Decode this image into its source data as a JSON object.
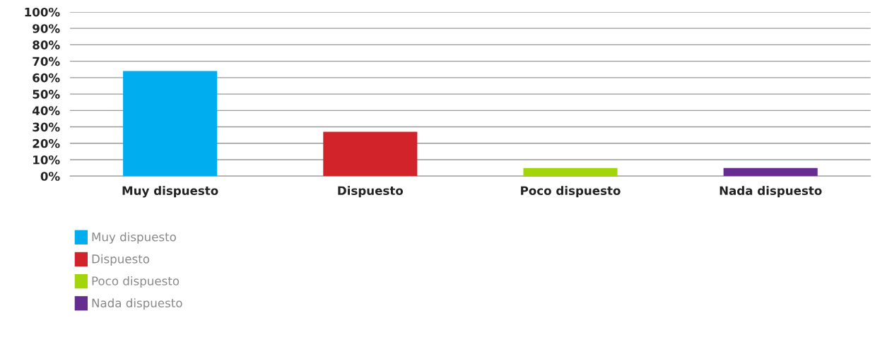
{
  "chart_data": {
    "type": "bar",
    "categories": [
      "Muy dispuesto",
      "Dispuesto",
      "Poco dispuesto",
      "Nada dispuesto"
    ],
    "series": [
      {
        "name": "Muy dispuesto",
        "color": "#00adee",
        "values": [
          64,
          null,
          null,
          null
        ]
      },
      {
        "name": "Dispuesto",
        "color": "#d2232a",
        "values": [
          null,
          27,
          null,
          null
        ]
      },
      {
        "name": "Poco dispuesto",
        "color": "#a2d60a",
        "values": [
          null,
          null,
          5,
          null
        ]
      },
      {
        "name": "Nada dispuesto",
        "color": "#662d91",
        "values": [
          null,
          null,
          null,
          5
        ]
      }
    ],
    "ylim": [
      0,
      100
    ],
    "yticks": [
      {
        "value": 0,
        "label": "0%"
      },
      {
        "value": 10,
        "label": "10%"
      },
      {
        "value": 20,
        "label": "20%"
      },
      {
        "value": 30,
        "label": "30%"
      },
      {
        "value": 40,
        "label": "40%"
      },
      {
        "value": 50,
        "label": "50%"
      },
      {
        "value": 60,
        "label": "60%"
      },
      {
        "value": 70,
        "label": "70%"
      },
      {
        "value": 80,
        "label": "80%"
      },
      {
        "value": 90,
        "label": "90%"
      },
      {
        "value": 100,
        "label": "100%"
      }
    ],
    "grid": "y",
    "legend": "bottom left"
  }
}
